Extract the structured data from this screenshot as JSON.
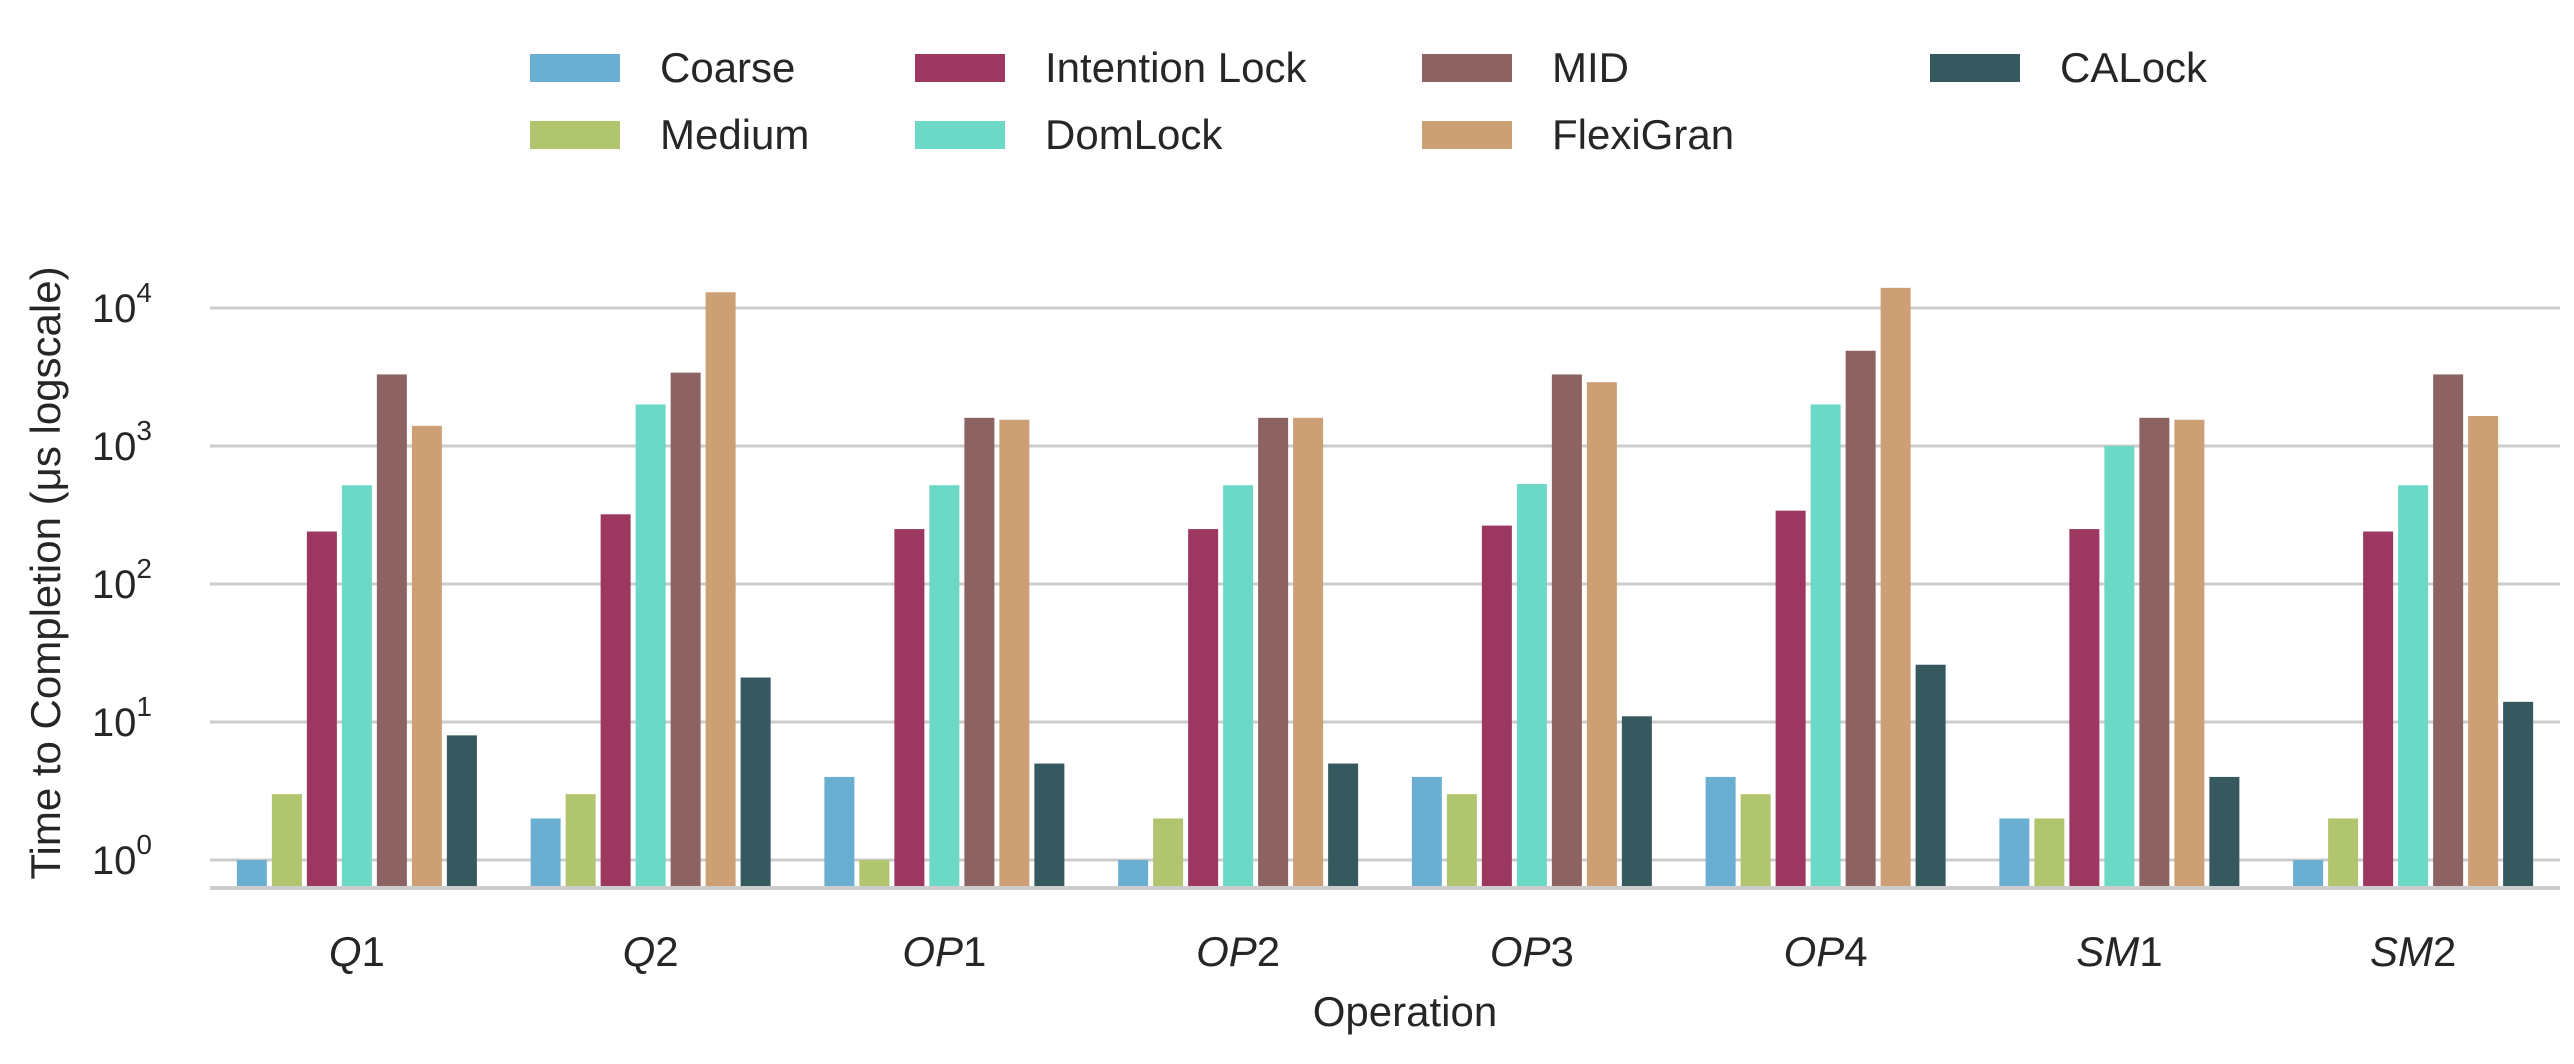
{
  "chart_data": {
    "type": "bar",
    "xlabel": "Operation",
    "ylabel": "Time to Completion (μs logscale)",
    "yscale": "log",
    "ylim": [
      0.6,
      60000
    ],
    "grid": "horizontal",
    "legend_position": "top",
    "categories": [
      "Q1",
      "Q2",
      "OP1",
      "OP2",
      "OP3",
      "OP4",
      "SM1",
      "SM2"
    ],
    "category_display": [
      {
        "prefix": "Q",
        "num": "1"
      },
      {
        "prefix": "Q",
        "num": "2"
      },
      {
        "prefix": "OP",
        "num": "1"
      },
      {
        "prefix": "OP",
        "num": "2"
      },
      {
        "prefix": "OP",
        "num": "3"
      },
      {
        "prefix": "OP",
        "num": "4"
      },
      {
        "prefix": "SM",
        "num": "1"
      },
      {
        "prefix": "SM",
        "num": "2"
      }
    ],
    "yticks": [
      {
        "value": 1,
        "base": "10",
        "exp": "0"
      },
      {
        "value": 10,
        "base": "10",
        "exp": "1"
      },
      {
        "value": 100,
        "base": "10",
        "exp": "2"
      },
      {
        "value": 1000,
        "base": "10",
        "exp": "3"
      },
      {
        "value": 10000,
        "base": "10",
        "exp": "4"
      }
    ],
    "series": [
      {
        "name": "Coarse",
        "color": "#6aafd2",
        "values": [
          1,
          2,
          4,
          1,
          4,
          4,
          2,
          1
        ]
      },
      {
        "name": "Medium",
        "color": "#b1c46e",
        "values": [
          3,
          3,
          1,
          2,
          3,
          3,
          2,
          2
        ]
      },
      {
        "name": "Intention Lock",
        "color": "#9c3760",
        "values": [
          240,
          320,
          250,
          250,
          265,
          340,
          250,
          240
        ]
      },
      {
        "name": "DomLock",
        "color": "#6cd8c6",
        "values": [
          520,
          2000,
          520,
          520,
          530,
          2000,
          1000,
          520
        ]
      },
      {
        "name": "MID",
        "color": "#8c6262",
        "values": [
          3300,
          3400,
          1600,
          1600,
          3300,
          4900,
          1600,
          3300
        ]
      },
      {
        "name": "FlexiGran",
        "color": "#cd9f75",
        "values": [
          1400,
          13000,
          1550,
          1600,
          2900,
          14000,
          1550,
          1650
        ]
      },
      {
        "name": "CALock",
        "color": "#36585f",
        "values": [
          8,
          21,
          5,
          5,
          11,
          26,
          4,
          14
        ]
      }
    ]
  }
}
